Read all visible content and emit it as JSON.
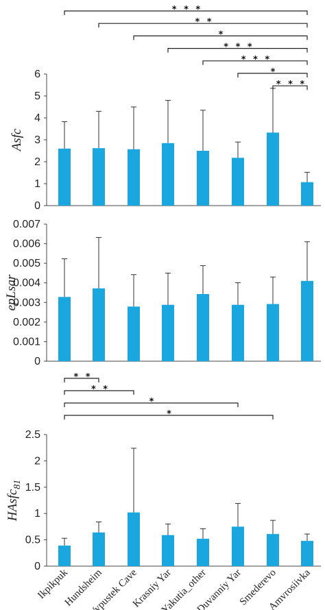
{
  "chart_data": [
    {
      "type": "bar",
      "categories": [
        "Ikpikpuk",
        "Hundsheim",
        "Vypustek Cave",
        "Krasniy Yar",
        "Yakutia_other",
        "Duvanniy Yar",
        "Smederevo",
        "Amvrosiivka"
      ],
      "values": [
        2.6,
        2.62,
        2.57,
        2.85,
        2.5,
        2.18,
        3.33,
        1.07
      ],
      "error_plus": [
        1.23,
        1.68,
        1.93,
        1.95,
        1.85,
        0.72,
        2.02,
        0.45
      ],
      "ylabel": "Asfc",
      "ylim": [
        0,
        6
      ],
      "yticks": [
        "0",
        "1",
        "2",
        "3",
        "4",
        "5",
        "6"
      ],
      "ytick_values": [
        0,
        1,
        2,
        3,
        4,
        5,
        6
      ],
      "color": "#1aa7e0",
      "grid": false,
      "significance": [
        {
          "from": "Ikpikpuk",
          "to": "Amvrosiivka",
          "stars": "* * *"
        },
        {
          "from": "Hundsheim",
          "to": "Amvrosiivka",
          "stars": "* *"
        },
        {
          "from": "Vypustek Cave",
          "to": "Amvrosiivka",
          "stars": "*"
        },
        {
          "from": "Krasniy Yar",
          "to": "Amvrosiivka",
          "stars": "* * *"
        },
        {
          "from": "Yakutia_other",
          "to": "Amvrosiivka",
          "stars": "* * *"
        },
        {
          "from": "Duvanniy Yar",
          "to": "Amvrosiivka",
          "stars": "*"
        },
        {
          "from": "Smederevo",
          "to": "Amvrosiivka",
          "stars": "* * *"
        }
      ]
    },
    {
      "type": "bar",
      "categories": [
        "Ikpikpuk",
        "Hundsheim",
        "Vypustek Cave",
        "Krasniy Yar",
        "Yakutia_other",
        "Duvanniy Yar",
        "Smederevo",
        "Amvrosiivka"
      ],
      "values": [
        0.00328,
        0.00372,
        0.00279,
        0.00288,
        0.00343,
        0.00288,
        0.00292,
        0.0041
      ],
      "error_plus": [
        0.00195,
        0.0026,
        0.00163,
        0.00162,
        0.00145,
        0.00113,
        0.00138,
        0.002
      ],
      "ylabel": "epLsar",
      "ylim": [
        0,
        0.007
      ],
      "yticks": [
        "0",
        "0.001",
        "0.002",
        "0.003",
        "0.004",
        "0.005",
        "0.006",
        "0.007"
      ],
      "ytick_values": [
        0,
        0.001,
        0.002,
        0.003,
        0.004,
        0.005,
        0.006,
        0.007
      ],
      "color": "#1aa7e0",
      "grid": false,
      "significance": []
    },
    {
      "type": "bar",
      "categories": [
        "Ikpikpuk",
        "Hundsheim",
        "Vypustek Cave",
        "Krasniy Yar",
        "Yakutia_other",
        "Duvanniy Yar",
        "Smederevo",
        "Amvrosiivka"
      ],
      "values": [
        0.39,
        0.64,
        1.02,
        0.59,
        0.52,
        0.75,
        0.61,
        0.48
      ],
      "error_plus": [
        0.14,
        0.2,
        1.22,
        0.21,
        0.19,
        0.44,
        0.26,
        0.13
      ],
      "ylabel": "HAsfc",
      "ylabel_sub": "81",
      "ylim": [
        0,
        2.5
      ],
      "yticks": [
        "0",
        "0.5",
        "1",
        "1.5",
        "2",
        "2.5"
      ],
      "ytick_values": [
        0,
        0.5,
        1,
        1.5,
        2,
        2.5
      ],
      "color": "#1aa7e0",
      "grid": false,
      "significance": [
        {
          "from": "Ikpikpuk",
          "to": "Smederevo",
          "stars": "*"
        },
        {
          "from": "Ikpikpuk",
          "to": "Duvanniy Yar",
          "stars": "*"
        },
        {
          "from": "Ikpikpuk",
          "to": "Vypustek Cave",
          "stars": "* *"
        },
        {
          "from": "Ikpikpuk",
          "to": "Hundsheim",
          "stars": "* *"
        }
      ]
    }
  ]
}
